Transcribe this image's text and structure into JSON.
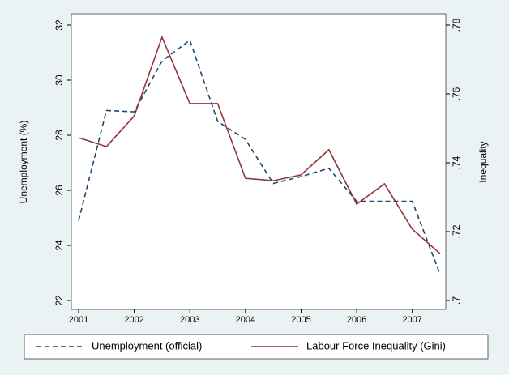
{
  "chart_data": {
    "type": "line",
    "y_label": "Unemployment (%)",
    "y2_label": "Inequality",
    "x": [
      2001,
      2001.5,
      2002,
      2002.5,
      2003,
      2003.5,
      2004,
      2004.5,
      2005,
      2005.5,
      2006,
      2006.5,
      2007,
      2007.5
    ],
    "series": [
      {
        "name": "Unemployment (official)",
        "color": "#1a476f",
        "dash": true,
        "values": [
          24.9,
          28.9,
          28.85,
          30.7,
          31.45,
          28.5,
          27.85,
          26.25,
          26.5,
          26.8,
          25.6,
          25.6,
          25.6,
          22.95
        ]
      },
      {
        "name": "Labour Force Inequality (Gini)",
        "color": "#90353b",
        "axis": "y2",
        "values": [
          0.7473,
          0.7447,
          0.7536,
          0.7765,
          0.7572,
          0.7572,
          0.7355,
          0.7348,
          0.7365,
          0.7438,
          0.728,
          0.7339,
          0.7207,
          0.7136
        ]
      }
    ],
    "xlim": [
      2001,
      2007.5
    ],
    "xticks": [
      2001,
      2002,
      2003,
      2004,
      2005,
      2006,
      2007
    ],
    "ylim": [
      22,
      32
    ],
    "yticks": [
      22,
      24,
      26,
      28,
      30,
      32
    ],
    "y2lim": [
      0.7,
      0.78
    ],
    "y2ticks": [
      {
        "value": 0.7,
        "label": ".7"
      },
      {
        "value": 0.72,
        "label": ".72"
      },
      {
        "value": 0.74,
        "label": ".74"
      },
      {
        "value": 0.76,
        "label": ".76"
      },
      {
        "value": 0.78,
        "label": ".78"
      }
    ],
    "legend": "bottom"
  }
}
